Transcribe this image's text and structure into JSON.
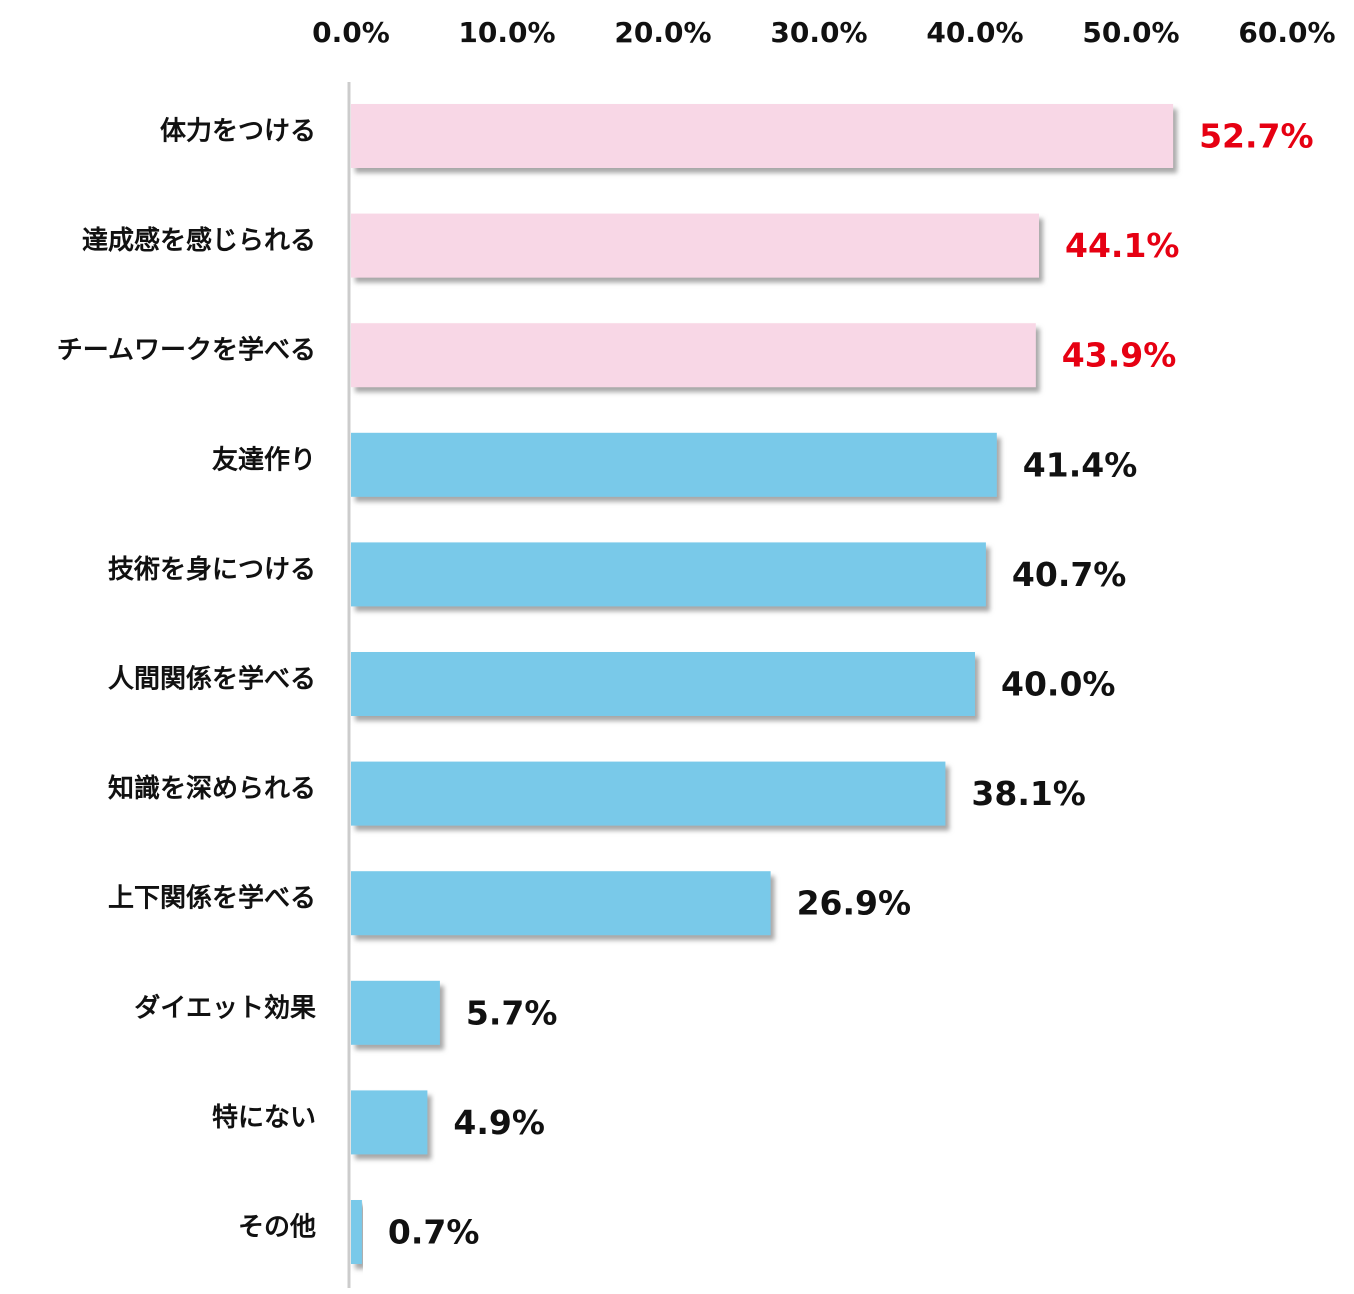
{
  "chart_data": {
    "type": "bar",
    "orientation": "horizontal",
    "title": "",
    "xlabel": "",
    "ylabel": "",
    "xlim": [
      0,
      60
    ],
    "x_ticks": [
      "0.0%",
      "10.0%",
      "20.0%",
      "30.0%",
      "40.0%",
      "50.0%",
      "60.0%"
    ],
    "grid": false,
    "legend": "none",
    "categories": [
      "体力をつける",
      "達成感を感じられる",
      "チームワークを学べる",
      "友達作り",
      "技術を身につける",
      "人間関係を学べる",
      "知識を深められる",
      "上下関係を学べる",
      "ダイエット効果",
      "特にない",
      "その他"
    ],
    "values": [
      52.7,
      44.1,
      43.9,
      41.4,
      40.7,
      40.0,
      38.1,
      26.9,
      5.7,
      4.9,
      0.7
    ],
    "value_labels": [
      "52.7%",
      "44.1%",
      "43.9%",
      "41.4%",
      "40.7%",
      "40.0%",
      "38.1%",
      "26.9%",
      "5.7%",
      "4.9%",
      "0.7%"
    ],
    "highlighted": [
      true,
      true,
      true,
      false,
      false,
      false,
      false,
      false,
      false,
      false,
      false
    ],
    "colors": {
      "highlight_bar": "#f8d7e6",
      "normal_bar": "#79c9e9",
      "highlight_label": "#e60012",
      "normal_label": "#111111",
      "axis_line": "#cccccc",
      "shadow": "#9a9a9a"
    }
  }
}
